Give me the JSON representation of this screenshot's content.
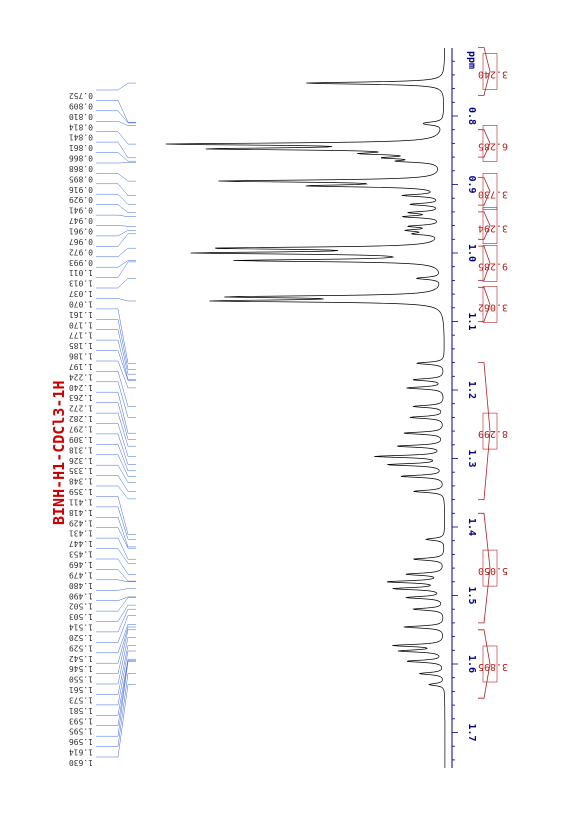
{
  "page": {
    "title": "BINH-H1-CDCl3-1H"
  },
  "colors": {
    "title": "#cc0000",
    "axis": "#00008b",
    "integral": "#b22222",
    "connector": "#4169e1",
    "spectrum": "#000000",
    "peak_label": "#333333"
  },
  "chart_data": {
    "type": "line",
    "title": "BINH-H1-CDCl3-1H",
    "xlabel": "ppm",
    "ylabel": "",
    "xlim": [
      1.75,
      0.69
    ],
    "axis_ticks": [
      "0.8",
      "0.9",
      "1.0",
      "1.1",
      "1.2",
      "1.3",
      "1.4",
      "1.5",
      "1.6",
      "1.7"
    ],
    "tick_values": [
      0.8,
      0.9,
      1.0,
      1.1,
      1.2,
      1.3,
      1.4,
      1.5,
      1.6,
      1.7
    ],
    "peak_labels": [
      "0.752",
      "0.809",
      "0.810",
      "0.814",
      "0.841",
      "0.861",
      "0.866",
      "0.868",
      "0.895",
      "0.916",
      "0.929",
      "0.941",
      "0.947",
      "0.961",
      "0.967",
      "0.972",
      "0.993",
      "1.011",
      "1.013",
      "1.037",
      "1.070",
      "1.161",
      "1.170",
      "1.177",
      "1.185",
      "1.186",
      "1.197",
      "1.224",
      "1.240",
      "1.263",
      "1.272",
      "1.282",
      "1.297",
      "1.309",
      "1.318",
      "1.326",
      "1.335",
      "1.348",
      "1.359",
      "1.411",
      "1.418",
      "1.429",
      "1.431",
      "1.447",
      "1.453",
      "1.469",
      "1.479",
      "1.480",
      "1.490",
      "1.502",
      "1.503",
      "1.514",
      "1.520",
      "1.529",
      "1.542",
      "1.546",
      "1.550",
      "1.561",
      "1.573",
      "1.581",
      "1.593",
      "1.595",
      "1.596",
      "1.614",
      "1.630"
    ],
    "integrals": [
      {
        "label": "3.240",
        "from": 0.77,
        "to": 0.7
      },
      {
        "label": "6.285",
        "from": 0.86,
        "to": 0.82
      },
      {
        "label": "3.730",
        "from": 0.93,
        "to": 0.89
      },
      {
        "label": "3.294",
        "from": 0.98,
        "to": 0.94
      },
      {
        "label": "9.285",
        "from": 1.04,
        "to": 0.99
      },
      {
        "label": "3.062",
        "from": 1.1,
        "to": 1.05
      },
      {
        "label": "8.299",
        "from": 1.36,
        "to": 1.16
      },
      {
        "label": "5.050",
        "from": 1.54,
        "to": 1.38
      },
      {
        "label": "3.895",
        "from": 1.65,
        "to": 1.55
      }
    ],
    "peaks": [
      {
        "ppm": 0.752,
        "intensity": 0.45
      },
      {
        "ppm": 0.81,
        "intensity": 0.04
      },
      {
        "ppm": 0.812,
        "intensity": 0.04
      },
      {
        "ppm": 0.841,
        "intensity": 0.85
      },
      {
        "ppm": 0.848,
        "intensity": 0.7
      },
      {
        "ppm": 0.855,
        "intensity": 0.2
      },
      {
        "ppm": 0.861,
        "intensity": 0.15
      },
      {
        "ppm": 0.866,
        "intensity": 0.12
      },
      {
        "ppm": 0.895,
        "intensity": 0.7
      },
      {
        "ppm": 0.902,
        "intensity": 0.4
      },
      {
        "ppm": 0.916,
        "intensity": 0.12
      },
      {
        "ppm": 0.929,
        "intensity": 0.1
      },
      {
        "ppm": 0.941,
        "intensity": 0.1
      },
      {
        "ppm": 0.947,
        "intensity": 0.12
      },
      {
        "ppm": 0.961,
        "intensity": 0.1
      },
      {
        "ppm": 0.967,
        "intensity": 0.1
      },
      {
        "ppm": 0.972,
        "intensity": 0.08
      },
      {
        "ppm": 0.993,
        "intensity": 0.7
      },
      {
        "ppm": 1.0,
        "intensity": 0.75
      },
      {
        "ppm": 1.011,
        "intensity": 0.65
      },
      {
        "ppm": 1.037,
        "intensity": 0.08
      },
      {
        "ppm": 1.064,
        "intensity": 0.65
      },
      {
        "ppm": 1.07,
        "intensity": 0.7
      },
      {
        "ppm": 1.161,
        "intensity": 0.09
      },
      {
        "ppm": 1.185,
        "intensity": 0.1
      },
      {
        "ppm": 1.197,
        "intensity": 0.12
      },
      {
        "ppm": 1.224,
        "intensity": 0.1
      },
      {
        "ppm": 1.24,
        "intensity": 0.11
      },
      {
        "ppm": 1.263,
        "intensity": 0.13
      },
      {
        "ppm": 1.282,
        "intensity": 0.15
      },
      {
        "ppm": 1.297,
        "intensity": 0.22
      },
      {
        "ppm": 1.309,
        "intensity": 0.18
      },
      {
        "ppm": 1.326,
        "intensity": 0.14
      },
      {
        "ppm": 1.348,
        "intensity": 0.1
      },
      {
        "ppm": 1.418,
        "intensity": 0.06
      },
      {
        "ppm": 1.447,
        "intensity": 0.1
      },
      {
        "ppm": 1.469,
        "intensity": 0.12
      },
      {
        "ppm": 1.48,
        "intensity": 0.18
      },
      {
        "ppm": 1.49,
        "intensity": 0.16
      },
      {
        "ppm": 1.503,
        "intensity": 0.12
      },
      {
        "ppm": 1.52,
        "intensity": 0.1
      },
      {
        "ppm": 1.546,
        "intensity": 0.13
      },
      {
        "ppm": 1.573,
        "intensity": 0.16
      },
      {
        "ppm": 1.581,
        "intensity": 0.14
      },
      {
        "ppm": 1.596,
        "intensity": 0.12
      },
      {
        "ppm": 1.614,
        "intensity": 0.08
      },
      {
        "ppm": 1.63,
        "intensity": 0.05
      }
    ],
    "grid": false,
    "legend": "none"
  }
}
